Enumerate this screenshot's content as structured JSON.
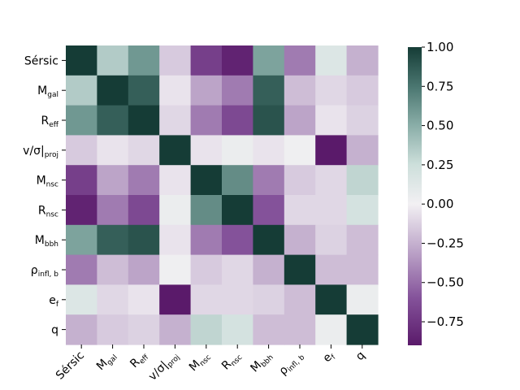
{
  "chart_data": {
    "type": "heatmap",
    "title": "",
    "xlabel": "",
    "ylabel": "",
    "labels": [
      {
        "main": "Sérsic",
        "sub": ""
      },
      {
        "main": "M",
        "sub": "gal"
      },
      {
        "main": "R",
        "sub": "eff"
      },
      {
        "main": "v/σ|",
        "sub": "proj"
      },
      {
        "main": "M",
        "sub": "nsc"
      },
      {
        "main": "R",
        "sub": "nsc"
      },
      {
        "main": "M",
        "sub": "bbh"
      },
      {
        "main": "ρ",
        "sub": "infl, b"
      },
      {
        "main": "e",
        "sub": "f"
      },
      {
        "main": "q",
        "sub": ""
      }
    ],
    "matrix": [
      [
        1.0,
        0.35,
        0.6,
        -0.15,
        -0.7,
        -0.85,
        0.55,
        -0.45,
        0.15,
        -0.25
      ],
      [
        0.35,
        1.0,
        0.85,
        -0.05,
        -0.3,
        -0.45,
        0.85,
        -0.2,
        -0.1,
        -0.15
      ],
      [
        0.6,
        0.85,
        1.0,
        -0.1,
        -0.45,
        -0.65,
        0.9,
        -0.3,
        -0.05,
        -0.12
      ],
      [
        -0.15,
        -0.05,
        -0.1,
        1.0,
        -0.05,
        0.05,
        -0.05,
        0.02,
        -0.9,
        -0.25
      ],
      [
        -0.7,
        -0.3,
        -0.45,
        -0.05,
        1.0,
        0.65,
        -0.45,
        -0.15,
        -0.1,
        0.3
      ],
      [
        -0.85,
        -0.45,
        -0.65,
        0.05,
        0.65,
        1.0,
        -0.6,
        -0.1,
        -0.1,
        0.2
      ],
      [
        0.55,
        0.85,
        0.9,
        -0.05,
        -0.45,
        -0.6,
        1.0,
        -0.25,
        -0.12,
        -0.2
      ],
      [
        -0.45,
        -0.2,
        -0.3,
        0.02,
        -0.15,
        -0.1,
        -0.25,
        1.0,
        -0.2,
        -0.2
      ],
      [
        0.15,
        -0.1,
        -0.05,
        -0.9,
        -0.1,
        -0.1,
        -0.12,
        -0.2,
        1.0,
        0.05
      ],
      [
        -0.25,
        -0.15,
        -0.12,
        -0.25,
        0.3,
        0.2,
        -0.2,
        -0.2,
        0.05,
        1.0
      ]
    ],
    "vmin": -0.9,
    "vmax": 1.0,
    "colorbar": {
      "ticks": [
        1.0,
        0.75,
        0.5,
        0.25,
        0.0,
        -0.25,
        -0.5,
        -0.75
      ],
      "tick_labels": [
        "1.00",
        "0.75",
        "0.50",
        "0.25",
        "0.00",
        "−0.25",
        "−0.50",
        "−0.75"
      ]
    },
    "colormap": {
      "stops": [
        {
          "value": -0.9,
          "color": "#5a1a6a"
        },
        {
          "value": -0.6,
          "color": "#84529a"
        },
        {
          "value": -0.3,
          "color": "#bca4c8"
        },
        {
          "value": 0.0,
          "color": "#f2f0f3"
        },
        {
          "value": 0.25,
          "color": "#cddfdb"
        },
        {
          "value": 0.5,
          "color": "#8aaea8"
        },
        {
          "value": 0.75,
          "color": "#4a7670"
        },
        {
          "value": 1.0,
          "color": "#153c36"
        }
      ]
    },
    "grid": false
  }
}
